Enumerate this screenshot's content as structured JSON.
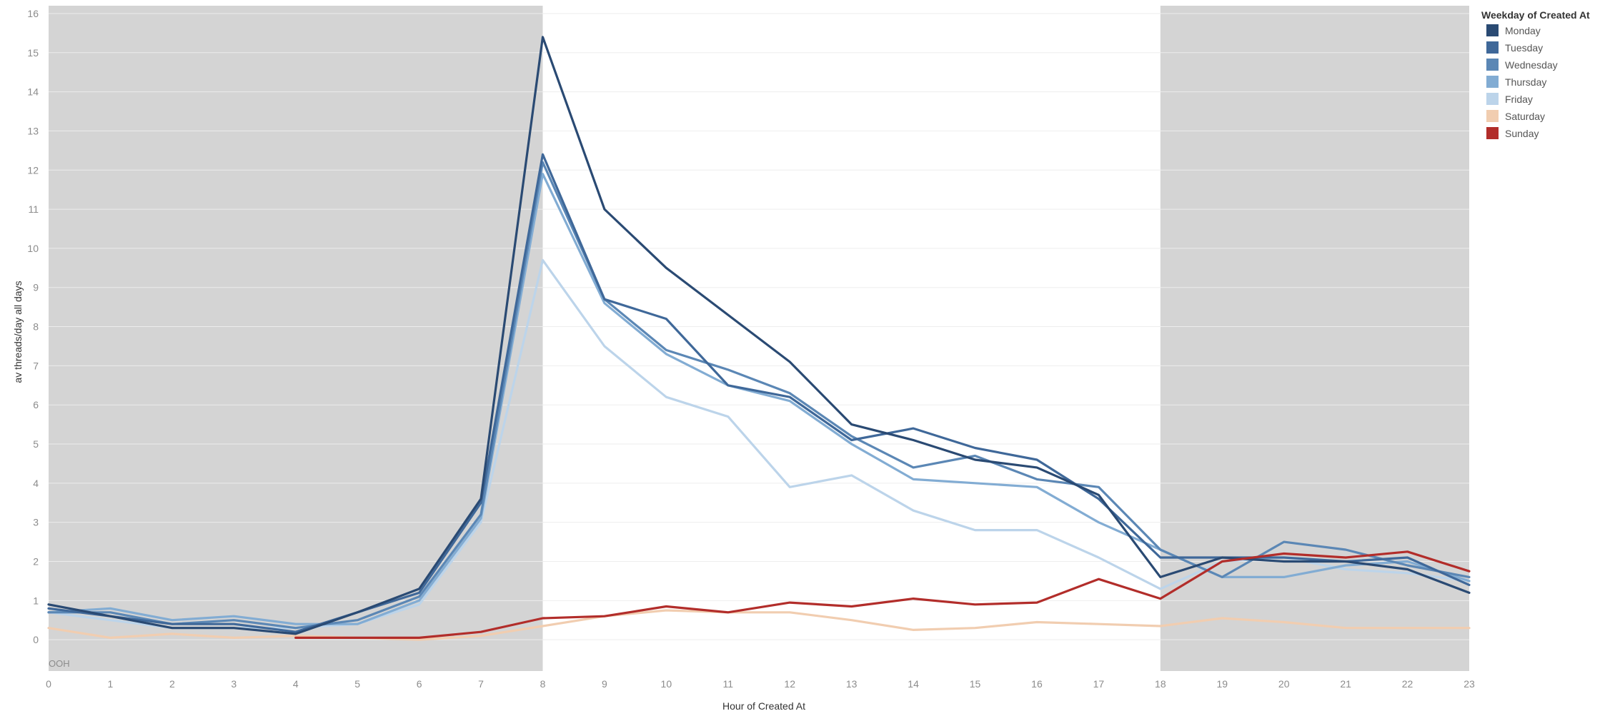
{
  "chart_data": {
    "type": "line",
    "xlabel": "Hour of Created At",
    "ylabel": "av threads/day all days",
    "x": [
      0,
      1,
      2,
      3,
      4,
      5,
      6,
      7,
      8,
      9,
      10,
      11,
      12,
      13,
      14,
      15,
      16,
      17,
      18,
      19,
      20,
      21,
      22,
      23
    ],
    "xlim": [
      0,
      23
    ],
    "ylim": [
      -0.8,
      16.2
    ],
    "yticks": [
      0,
      1,
      2,
      3,
      4,
      5,
      6,
      7,
      8,
      9,
      10,
      11,
      12,
      13,
      14,
      15,
      16
    ],
    "grid": true,
    "shaded_ranges": [
      [
        0,
        8
      ],
      [
        18,
        23
      ]
    ],
    "shaded_color": "#d4d4d4",
    "band_label": "OOH",
    "legend_title": "Weekday of Created At",
    "legend_position": "top-right",
    "series": [
      {
        "name": "Monday",
        "color": "#2a4a73",
        "values": [
          0.9,
          0.6,
          0.3,
          0.3,
          0.15,
          0.7,
          1.3,
          3.6,
          15.4,
          11.0,
          9.5,
          8.3,
          7.1,
          5.5,
          5.1,
          4.6,
          4.4,
          3.7,
          1.6,
          2.1,
          2.0,
          2.0,
          1.8,
          1.2
        ]
      },
      {
        "name": "Tuesday",
        "color": "#3f6899",
        "values": [
          0.8,
          0.6,
          0.4,
          0.4,
          0.2,
          0.7,
          1.2,
          3.5,
          12.4,
          8.7,
          8.2,
          6.5,
          6.2,
          5.1,
          5.4,
          4.9,
          4.6,
          3.6,
          2.1,
          2.1,
          2.1,
          2.0,
          2.1,
          1.4
        ]
      },
      {
        "name": "Wednesday",
        "color": "#5b87b5",
        "values": [
          0.7,
          0.7,
          0.4,
          0.5,
          0.3,
          0.5,
          1.1,
          3.2,
          12.2,
          8.7,
          7.4,
          6.9,
          6.3,
          5.2,
          4.4,
          4.7,
          4.1,
          3.9,
          2.3,
          1.6,
          2.5,
          2.3,
          1.9,
          1.6
        ]
      },
      {
        "name": "Thursday",
        "color": "#82acd3",
        "values": [
          0.7,
          0.8,
          0.5,
          0.6,
          0.4,
          0.4,
          1.0,
          3.1,
          11.9,
          8.6,
          7.3,
          6.5,
          6.1,
          5.0,
          4.1,
          4.0,
          3.9,
          3.0,
          2.3,
          1.6,
          1.6,
          1.9,
          2.0,
          1.5
        ]
      },
      {
        "name": "Friday",
        "color": "#bcd4ea",
        "values": [
          0.7,
          0.5,
          0.3,
          0.3,
          0.3,
          0.4,
          0.9,
          3.0,
          9.7,
          7.5,
          6.2,
          5.7,
          3.9,
          4.2,
          3.3,
          2.8,
          2.8,
          2.1,
          1.3,
          2.0,
          2.1,
          1.8,
          1.7,
          1.5
        ]
      },
      {
        "name": "Saturday",
        "color": "#f1cdb0",
        "values": [
          0.3,
          0.05,
          0.15,
          0.05,
          0.1,
          0.05,
          0.0,
          0.1,
          0.35,
          0.6,
          0.75,
          0.7,
          0.7,
          0.5,
          0.25,
          0.3,
          0.45,
          0.4,
          0.35,
          0.55,
          0.45,
          0.3,
          0.3,
          0.3
        ]
      },
      {
        "name": "Sunday",
        "color": "#b22d2a",
        "values": [
          null,
          null,
          null,
          null,
          0.05,
          0.05,
          0.05,
          0.2,
          0.55,
          0.6,
          0.85,
          0.7,
          0.95,
          0.85,
          1.05,
          0.9,
          0.95,
          1.55,
          1.05,
          2.0,
          2.2,
          2.1,
          2.25,
          1.75
        ]
      }
    ]
  }
}
